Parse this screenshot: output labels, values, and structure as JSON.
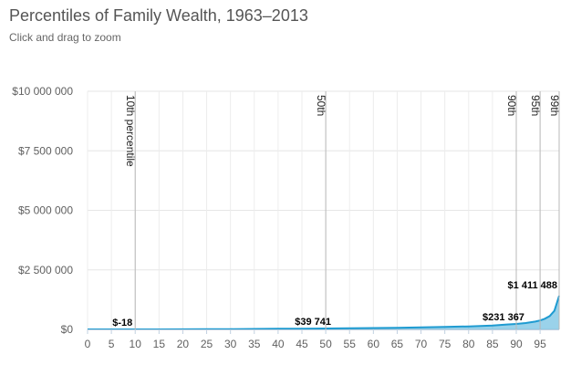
{
  "chart_data": {
    "type": "area",
    "title": "Percentiles of Family Wealth, 1963–2013",
    "subtitle": "Click and drag to zoom",
    "xlabel": "",
    "ylabel": "",
    "xlim": [
      0,
      99
    ],
    "ylim": [
      0,
      10000000
    ],
    "grid": true,
    "color": "#1f9bd1",
    "x_ticks": [
      "0",
      "5",
      "10",
      "15",
      "20",
      "25",
      "30",
      "35",
      "40",
      "45",
      "50",
      "55",
      "60",
      "65",
      "70",
      "75",
      "80",
      "85",
      "90",
      "95"
    ],
    "y_ticks": [
      {
        "value": 0,
        "label": "$0"
      },
      {
        "value": 2500000,
        "label": "$2 500 000"
      },
      {
        "value": 5000000,
        "label": "$5 000 000"
      },
      {
        "value": 7500000,
        "label": "$7 500 000"
      },
      {
        "value": 10000000,
        "label": "$10 000 000"
      }
    ],
    "plot_lines": [
      {
        "x": 10,
        "label": "10th percentile"
      },
      {
        "x": 50,
        "label": "50th"
      },
      {
        "x": 90,
        "label": "90th"
      },
      {
        "x": 95,
        "label": "95th"
      },
      {
        "x": 99,
        "label": "99th"
      }
    ],
    "data_labels": [
      {
        "x": 10,
        "y": -18,
        "label": "$-18"
      },
      {
        "x": 50,
        "y": 39741,
        "label": "$39 741"
      },
      {
        "x": 90,
        "y": 231367,
        "label": "$231 367"
      },
      {
        "x": 99,
        "y": 1411488,
        "label": "$1 411 488"
      }
    ],
    "series": [
      {
        "x": [
          0,
          5,
          10,
          15,
          20,
          25,
          30,
          35,
          40,
          45,
          50,
          55,
          60,
          65,
          70,
          75,
          80,
          85,
          88,
          90,
          92,
          94,
          95,
          96,
          97,
          98,
          99
        ],
        "values": [
          -5000,
          -1000,
          -18,
          1500,
          4000,
          8000,
          13000,
          19000,
          25000,
          32000,
          39741,
          48000,
          58000,
          70000,
          85000,
          103000,
          125000,
          165000,
          205000,
          231367,
          270000,
          330000,
          375000,
          450000,
          560000,
          780000,
          1411488
        ]
      }
    ]
  }
}
